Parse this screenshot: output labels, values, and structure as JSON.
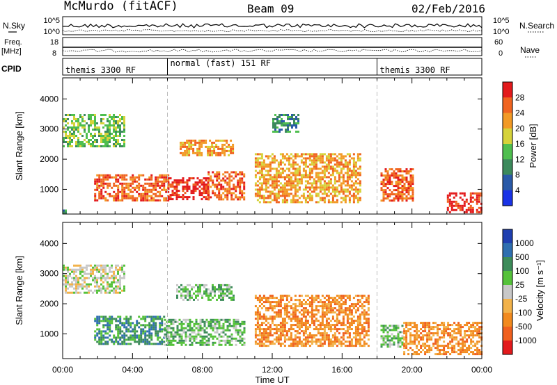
{
  "header": {
    "station": "McMurdo (fitACF)",
    "beam": "Beam 09",
    "date": "02/Feb/2016"
  },
  "side_labels": {
    "nsky": "N.Sky",
    "nsearch": "N.Search",
    "freq": "Freq.",
    "freq_unit": "[MHz]",
    "nave": "Nave",
    "cpid": "CPID"
  },
  "noise_axis": {
    "left_ticks": [
      "10^5",
      "10^0"
    ],
    "right_ticks": [
      "10^5",
      "10^0"
    ]
  },
  "freq_axis": {
    "left_ticks": [
      "18",
      "8"
    ],
    "right_ticks": [
      "60",
      "0"
    ]
  },
  "cpid_segments": [
    {
      "label": "themis 3300 RF",
      "start_hour": 0,
      "end_hour": 6
    },
    {
      "label": "normal (fast) 151 RF",
      "start_hour": 6,
      "end_hour": 18
    },
    {
      "label": "themis 3300 RF",
      "start_hour": 18,
      "end_hour": 24
    }
  ],
  "chart_data": [
    {
      "type": "heatmap",
      "panel": "power",
      "ylabel": "Slant Range [km]",
      "ylim": [
        180,
        4700
      ],
      "yticks": [
        "1000",
        "2000",
        "3000",
        "4000"
      ],
      "xlim": [
        0,
        24
      ],
      "colorbar_label": "Power [dB]",
      "colorbar_ticks": [
        "4",
        "8",
        "12",
        "16",
        "20",
        "24",
        "28"
      ],
      "colorbar_colors": [
        "#1a33e6",
        "#2a5aa8",
        "#3c8a5c",
        "#4fbf4f",
        "#d6d33a",
        "#f29a26",
        "#f06420",
        "#e31a1c"
      ],
      "regions": [
        {
          "x0": 0.0,
          "x1": 0.2,
          "y0": 250,
          "y1": 330,
          "value": 8
        },
        {
          "x0": 1.8,
          "x1": 6.0,
          "y0": 650,
          "y1": 1500,
          "value": 24
        },
        {
          "x0": 6.0,
          "x1": 8.3,
          "y0": 650,
          "y1": 1400,
          "value": 26
        },
        {
          "x0": 8.3,
          "x1": 10.4,
          "y0": 650,
          "y1": 1600,
          "value": 22
        },
        {
          "x0": 6.7,
          "x1": 9.8,
          "y0": 2150,
          "y1": 2650,
          "value": 18
        },
        {
          "x0": 0.0,
          "x1": 3.5,
          "y0": 2450,
          "y1": 3500,
          "value": 12
        },
        {
          "x0": 11.0,
          "x1": 17.0,
          "y0": 600,
          "y1": 2200,
          "value": 18
        },
        {
          "x0": 12.0,
          "x1": 13.5,
          "y0": 2900,
          "y1": 3500,
          "value": 6
        },
        {
          "x0": 18.2,
          "x1": 20.0,
          "y0": 600,
          "y1": 1700,
          "value": 24
        },
        {
          "x0": 22.0,
          "x1": 24.0,
          "y0": 250,
          "y1": 900,
          "value": 28
        }
      ]
    },
    {
      "type": "heatmap",
      "panel": "velocity",
      "ylabel": "Slant Range [km]",
      "ylim": [
        180,
        4700
      ],
      "yticks": [
        "1000",
        "2000",
        "3000",
        "4000"
      ],
      "xlim": [
        0,
        24
      ],
      "xticks": [
        "00:00",
        "04:00",
        "08:00",
        "12:00",
        "16:00",
        "20:00",
        "00:00"
      ],
      "xlabel": "Time UT",
      "colorbar_label": "Velocity [m s⁻¹]",
      "colorbar_ticks": [
        "1000",
        "500",
        "100",
        "25",
        "-25",
        "-100",
        "-500",
        "-1000"
      ],
      "colorbar_colors": [
        "#1f3fb0",
        "#2f6fb0",
        "#3d8c5a",
        "#55c23a",
        "#c8c8c8",
        "#f2b24a",
        "#f28a1e",
        "#f0601e",
        "#e31a1c"
      ],
      "regions": [
        {
          "x0": 1.8,
          "x1": 5.8,
          "y0": 650,
          "y1": 1600,
          "value": 300
        },
        {
          "x0": 5.8,
          "x1": 10.4,
          "y0": 650,
          "y1": 1500,
          "value": 80
        },
        {
          "x0": 6.5,
          "x1": 9.8,
          "y0": 2150,
          "y1": 2650,
          "value": 60
        },
        {
          "x0": 0.0,
          "x1": 3.5,
          "y0": 2400,
          "y1": 3300,
          "value": 0
        },
        {
          "x0": 11.0,
          "x1": 17.5,
          "y0": 600,
          "y1": 2300,
          "value": -150
        },
        {
          "x0": 18.2,
          "x1": 19.5,
          "y0": 600,
          "y1": 1300,
          "value": 60
        },
        {
          "x0": 19.5,
          "x1": 24.0,
          "y0": 300,
          "y1": 1400,
          "value": -200
        }
      ]
    }
  ]
}
